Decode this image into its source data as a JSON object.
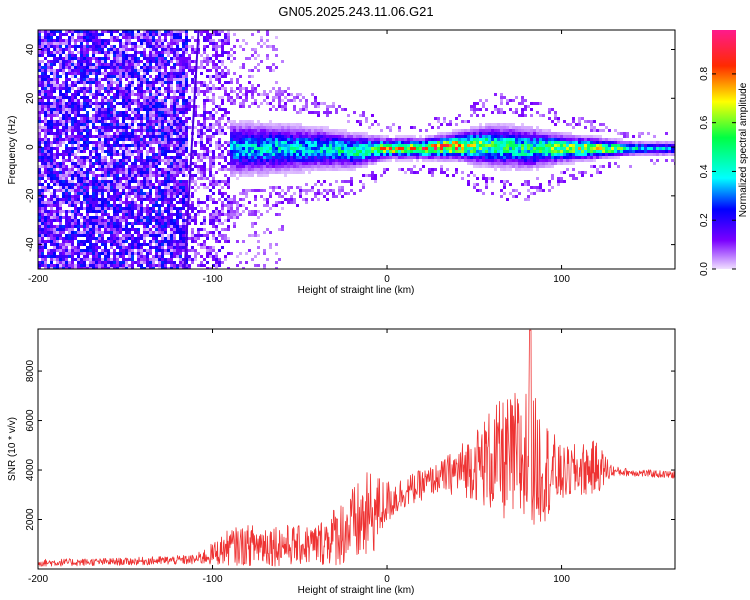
{
  "title": "GN05.2025.243.11.06.G21",
  "chart_data": [
    {
      "type": "heatmap",
      "name": "spectrogram",
      "xlabel": "Height of straight line (km)",
      "ylabel": "Frequency (Hz)",
      "xlim": [
        -200,
        165
      ],
      "ylim": [
        -50,
        48
      ],
      "xticks": [
        -200,
        -100,
        0,
        100
      ],
      "xtick_labels": [
        "-200",
        "-100",
        "0",
        "100"
      ],
      "yticks": [
        -40,
        -20,
        0,
        20,
        40
      ],
      "ytick_labels": [
        "-40",
        "-20",
        "0",
        "20",
        "40"
      ],
      "colorbar": {
        "label": "Normalized spectral amplitude",
        "range": [
          0,
          0.98
        ],
        "ticks": [
          0.0,
          0.2,
          0.4,
          0.6,
          0.8
        ],
        "tick_labels": [
          "0.0",
          "0.2",
          "0.4",
          "0.6",
          "0.8"
        ],
        "colors": [
          "#f2e6ff",
          "#6a00ff",
          "#0000ff",
          "#00ffff",
          "#00ff66",
          "#ffff00",
          "#ff3300",
          "#ff1493"
        ]
      },
      "band_profile": {
        "x": [
          -110,
          -90,
          -60,
          -40,
          -20,
          0,
          20,
          40,
          60,
          80,
          100,
          120,
          140,
          165
        ],
        "center_hz": [
          0,
          0,
          0,
          0,
          -1,
          0,
          0,
          1,
          1,
          0,
          0,
          0,
          0,
          0
        ],
        "halfwidth_hz": [
          8,
          8,
          7,
          6,
          5,
          3,
          3,
          4,
          6,
          6,
          4,
          3,
          2,
          2
        ],
        "peak_amplitude": [
          0.35,
          0.4,
          0.45,
          0.45,
          0.55,
          0.8,
          0.85,
          0.9,
          0.6,
          0.55,
          0.7,
          0.8,
          0.5,
          0.35
        ]
      },
      "noise_region": [
        -200,
        -90
      ],
      "diagonal_streak": {
        "x_top": -108,
        "y_top": 48,
        "x_bottom": -116,
        "y_bottom": -50
      }
    },
    {
      "type": "line",
      "name": "snr",
      "xlabel": "Height of straight line (km)",
      "ylabel": "SNR (10 * v/v)",
      "xlim": [
        -200,
        165
      ],
      "ylim": [
        0,
        9700
      ],
      "xticks": [
        -200,
        -100,
        0,
        100
      ],
      "xtick_labels": [
        "-200",
        "-100",
        "0",
        "100"
      ],
      "yticks": [
        2000,
        4000,
        6000,
        8000
      ],
      "ytick_labels": [
        "2000",
        "4000",
        "6000",
        "8000"
      ],
      "color": "#ff0000",
      "envelope": {
        "x": [
          -200,
          -150,
          -110,
          -100,
          -90,
          -70,
          -50,
          -40,
          -20,
          -10,
          0,
          10,
          30,
          50,
          60,
          70,
          80,
          90,
          100,
          110,
          120,
          130,
          140,
          165
        ],
        "mean": [
          250,
          300,
          380,
          600,
          900,
          1000,
          950,
          1000,
          1700,
          2100,
          2700,
          3100,
          3700,
          4200,
          4400,
          4400,
          4400,
          4100,
          3800,
          4000,
          4100,
          3950,
          3900,
          3800
        ],
        "spread": [
          150,
          150,
          200,
          450,
          750,
          900,
          800,
          850,
          1600,
          1900,
          900,
          650,
          600,
          1400,
          2200,
          2600,
          3200,
          2200,
          1100,
          1100,
          1100,
          200,
          150,
          150
        ]
      }
    }
  ]
}
